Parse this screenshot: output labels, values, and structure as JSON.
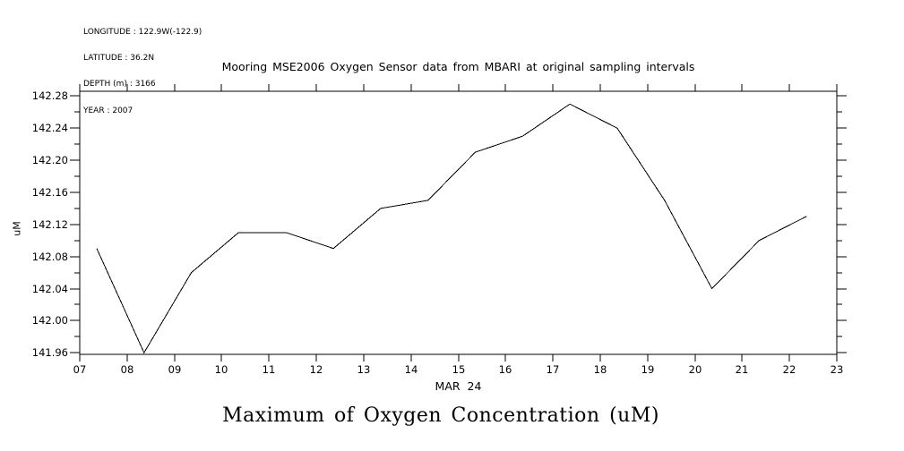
{
  "header": {
    "meta_lines": [
      "LONGITUDE : 122.9W(-122.9)",
      "LATITUDE : 36.2N",
      "DEPTH (m) : 3166",
      "YEAR : 2007"
    ],
    "title": "Mooring MSE2006 Oxygen Sensor data from MBARI at original sampling intervals"
  },
  "footer": {
    "caption": "Maximum of Oxygen Concentration (uM)"
  },
  "chart_data": {
    "type": "line",
    "title": "Mooring MSE2006 Oxygen Sensor data from MBARI at original sampling intervals",
    "xlabel": "MAR 24",
    "ylabel": "uM",
    "xlim": [
      7,
      23
    ],
    "ylim": [
      141.958,
      142.286
    ],
    "grid": false,
    "legend": "none",
    "line_color": "#000000",
    "axis_color": "#000000",
    "background_color": "#ffffff",
    "x_ticks": [
      7,
      8,
      9,
      10,
      11,
      12,
      13,
      14,
      15,
      16,
      17,
      18,
      19,
      20,
      21,
      22,
      23
    ],
    "x_tick_labels": [
      "07",
      "08",
      "09",
      "10",
      "11",
      "12",
      "13",
      "14",
      "15",
      "16",
      "17",
      "18",
      "19",
      "20",
      "21",
      "22",
      "23"
    ],
    "y_major_ticks": [
      141.96,
      142.0,
      142.04,
      142.08,
      142.12,
      142.16,
      142.2,
      142.24,
      142.28
    ],
    "y_tick_labels": [
      "141.96",
      "142.00",
      "142.04",
      "142.08",
      "142.12",
      "142.16",
      "142.20",
      "142.24",
      "142.28"
    ],
    "y_minor_ticks": [
      141.98,
      142.02,
      142.06,
      142.1,
      142.14,
      142.18,
      142.22,
      142.26
    ],
    "series": [
      {
        "name": "Maximum of Oxygen Concentration (uM)",
        "x": [
          7.36,
          8.36,
          9.36,
          10.36,
          11.36,
          12.36,
          13.36,
          14.36,
          15.36,
          16.36,
          17.36,
          18.36,
          19.36,
          20.36,
          21.36,
          22.36
        ],
        "y": [
          142.09,
          141.96,
          142.06,
          142.11,
          142.11,
          142.09,
          142.14,
          142.15,
          142.21,
          142.23,
          142.27,
          142.24,
          142.15,
          142.04,
          142.1,
          142.13
        ]
      }
    ]
  }
}
